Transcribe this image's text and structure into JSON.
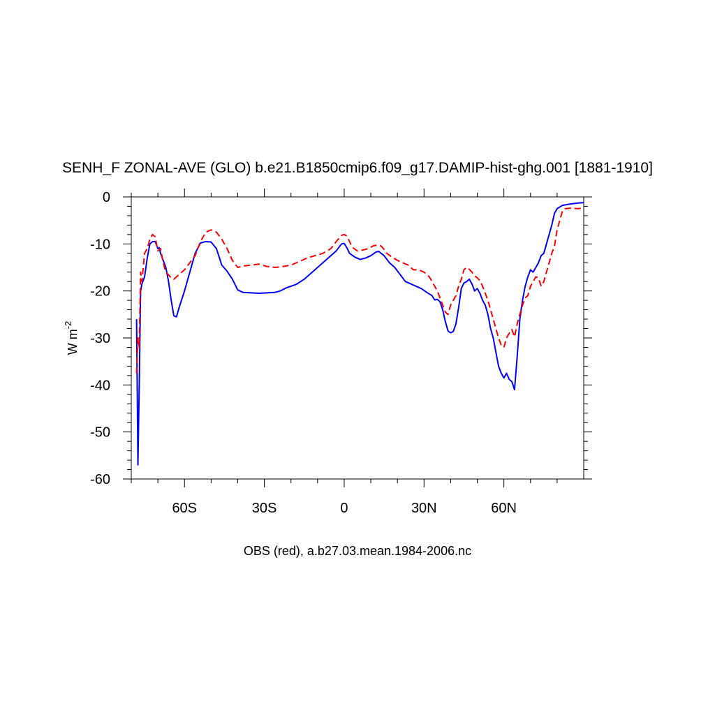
{
  "chart_data": {
    "type": "line",
    "title": "SENH_F ZONAL-AVE (GLO) b.e21.B1850cmip6.f09_g17.DAMIP-hist-ghg.001 [1881-1910]",
    "ylabel_main": "W m",
    "ylabel_sup": "-2",
    "xlabel": "OBS (red), a.b27.03.mean.1984-2006.nc",
    "xlim": [
      -80,
      90
    ],
    "ylim": [
      -60,
      0
    ],
    "x_ticks": [
      {
        "value": -60,
        "label": "60S"
      },
      {
        "value": -30,
        "label": "30S"
      },
      {
        "value": 0,
        "label": "0"
      },
      {
        "value": 30,
        "label": "30N"
      },
      {
        "value": 60,
        "label": "60N"
      }
    ],
    "y_ticks": [
      {
        "value": 0,
        "label": "0"
      },
      {
        "value": -10,
        "label": "-10"
      },
      {
        "value": -20,
        "label": "-20"
      },
      {
        "value": -30,
        "label": "-30"
      },
      {
        "value": -40,
        "label": "-40"
      },
      {
        "value": -50,
        "label": "-50"
      },
      {
        "value": -60,
        "label": "-60"
      }
    ],
    "grid": false,
    "series": [
      {
        "color": "#0000ff",
        "dash": "solid",
        "points": [
          [
            -78,
            -26
          ],
          [
            -77.5,
            -57
          ],
          [
            -77,
            -40
          ],
          [
            -76.5,
            -20
          ],
          [
            -76,
            -18.5
          ],
          [
            -75,
            -17
          ],
          [
            -74,
            -13
          ],
          [
            -73,
            -10
          ],
          [
            -72,
            -9.5
          ],
          [
            -71,
            -9.5
          ],
          [
            -70,
            -11
          ],
          [
            -69.5,
            -10.8
          ],
          [
            -69,
            -12
          ],
          [
            -68,
            -13.5
          ],
          [
            -67,
            -15
          ],
          [
            -66,
            -18
          ],
          [
            -65,
            -22
          ],
          [
            -64,
            -25.3
          ],
          [
            -63,
            -25.5
          ],
          [
            -62,
            -23.5
          ],
          [
            -60,
            -20
          ],
          [
            -58,
            -16
          ],
          [
            -56,
            -12
          ],
          [
            -54,
            -9.8
          ],
          [
            -52,
            -9.5
          ],
          [
            -50,
            -9.6
          ],
          [
            -48,
            -11
          ],
          [
            -46,
            -14.5
          ],
          [
            -44,
            -15.8
          ],
          [
            -42,
            -17.5
          ],
          [
            -40,
            -19.8
          ],
          [
            -38,
            -20.3
          ],
          [
            -35,
            -20.4
          ],
          [
            -32,
            -20.5
          ],
          [
            -29,
            -20.4
          ],
          [
            -26,
            -20.3
          ],
          [
            -24,
            -20
          ],
          [
            -22,
            -19.4
          ],
          [
            -20,
            -19
          ],
          [
            -18,
            -18.6
          ],
          [
            -15,
            -17.5
          ],
          [
            -12,
            -16
          ],
          [
            -9,
            -14.5
          ],
          [
            -6,
            -13
          ],
          [
            -3,
            -11.5
          ],
          [
            -1,
            -10
          ],
          [
            0,
            -9.9
          ],
          [
            1,
            -10.8
          ],
          [
            2,
            -12
          ],
          [
            4,
            -12.8
          ],
          [
            6,
            -13.3
          ],
          [
            8,
            -13
          ],
          [
            10,
            -12.5
          ],
          [
            12,
            -11.7
          ],
          [
            13,
            -11.6
          ],
          [
            15,
            -12.5
          ],
          [
            17,
            -14
          ],
          [
            19,
            -15
          ],
          [
            21,
            -16.5
          ],
          [
            23,
            -18
          ],
          [
            25,
            -18.5
          ],
          [
            27,
            -19
          ],
          [
            29,
            -19.5
          ],
          [
            31,
            -20.3
          ],
          [
            33,
            -21
          ],
          [
            34,
            -21.9
          ],
          [
            35,
            -21.8
          ],
          [
            36,
            -22.3
          ],
          [
            37,
            -24
          ],
          [
            38,
            -26.5
          ],
          [
            39,
            -28.5
          ],
          [
            40,
            -28.9
          ],
          [
            41,
            -28.6
          ],
          [
            42,
            -27
          ],
          [
            43,
            -23.5
          ],
          [
            44,
            -19.5
          ],
          [
            45,
            -18.3
          ],
          [
            46,
            -18
          ],
          [
            47,
            -17.5
          ],
          [
            48,
            -18.5
          ],
          [
            49,
            -20
          ],
          [
            50,
            -19.5
          ],
          [
            51,
            -20.5
          ],
          [
            52,
            -22
          ],
          [
            53,
            -23
          ],
          [
            54,
            -25
          ],
          [
            55,
            -28
          ],
          [
            56,
            -30
          ],
          [
            57,
            -33
          ],
          [
            58,
            -36
          ],
          [
            59,
            -37.5
          ],
          [
            60,
            -38.5
          ],
          [
            61,
            -37.5
          ],
          [
            62,
            -38.8
          ],
          [
            63,
            -39.3
          ],
          [
            64,
            -41
          ],
          [
            65,
            -34
          ],
          [
            66,
            -26
          ],
          [
            67,
            -22
          ],
          [
            68,
            -19
          ],
          [
            69,
            -17
          ],
          [
            70,
            -15.5
          ],
          [
            71,
            -16
          ],
          [
            72,
            -15
          ],
          [
            73,
            -14
          ],
          [
            74,
            -12.5
          ],
          [
            75,
            -12
          ],
          [
            76,
            -10
          ],
          [
            77,
            -8
          ],
          [
            78,
            -6
          ],
          [
            79,
            -3.5
          ],
          [
            80,
            -2.5
          ],
          [
            82,
            -1.8
          ],
          [
            85,
            -1.5
          ],
          [
            88,
            -1.3
          ],
          [
            90,
            -1.2
          ]
        ]
      },
      {
        "color": "#ff0000",
        "dash": "dashed",
        "points": [
          [
            -78,
            -37.5
          ],
          [
            -77.5,
            -30
          ],
          [
            -77,
            -32
          ],
          [
            -76.5,
            -16
          ],
          [
            -76,
            -18
          ],
          [
            -75,
            -12
          ],
          [
            -74,
            -11
          ],
          [
            -73,
            -9
          ],
          [
            -72,
            -8
          ],
          [
            -71,
            -8.5
          ],
          [
            -70,
            -11.5
          ],
          [
            -69,
            -11
          ],
          [
            -68,
            -14
          ],
          [
            -67,
            -16
          ],
          [
            -65,
            -17.2
          ],
          [
            -64,
            -17.5
          ],
          [
            -62,
            -16.5
          ],
          [
            -60,
            -15.5
          ],
          [
            -58,
            -14
          ],
          [
            -56,
            -12.5
          ],
          [
            -54,
            -9.5
          ],
          [
            -52,
            -7.5
          ],
          [
            -50,
            -7
          ],
          [
            -48,
            -7.5
          ],
          [
            -46,
            -9
          ],
          [
            -44,
            -11
          ],
          [
            -42,
            -13.5
          ],
          [
            -40,
            -15
          ],
          [
            -38,
            -14.7
          ],
          [
            -35,
            -14.5
          ],
          [
            -32,
            -14.3
          ],
          [
            -29,
            -14.8
          ],
          [
            -26,
            -15
          ],
          [
            -23,
            -14.8
          ],
          [
            -20,
            -14.5
          ],
          [
            -17,
            -13.8
          ],
          [
            -14,
            -13
          ],
          [
            -11,
            -12.5
          ],
          [
            -8,
            -12
          ],
          [
            -5,
            -11
          ],
          [
            -3,
            -9.5
          ],
          [
            -1,
            -8.2
          ],
          [
            0,
            -8
          ],
          [
            1,
            -8.3
          ],
          [
            2,
            -9.5
          ],
          [
            3,
            -10.7
          ],
          [
            5,
            -11.5
          ],
          [
            7,
            -11.3
          ],
          [
            9,
            -11
          ],
          [
            11,
            -10.4
          ],
          [
            13,
            -10.2
          ],
          [
            14,
            -10.5
          ],
          [
            15,
            -11.2
          ],
          [
            16,
            -12
          ],
          [
            18,
            -12.8
          ],
          [
            20,
            -13.5
          ],
          [
            22,
            -14
          ],
          [
            24,
            -14.5
          ],
          [
            26,
            -15.5
          ],
          [
            28,
            -15.5
          ],
          [
            30,
            -16
          ],
          [
            32,
            -17
          ],
          [
            34,
            -19
          ],
          [
            35,
            -20
          ],
          [
            36,
            -21.5
          ],
          [
            37,
            -23
          ],
          [
            38,
            -24.5
          ],
          [
            39,
            -25
          ],
          [
            40,
            -23
          ],
          [
            41,
            -22
          ],
          [
            42,
            -21
          ],
          [
            43,
            -19
          ],
          [
            44,
            -17.5
          ],
          [
            45,
            -15.5
          ],
          [
            46,
            -15
          ],
          [
            47,
            -15.4
          ],
          [
            48,
            -16
          ],
          [
            49,
            -16.8
          ],
          [
            50,
            -17.2
          ],
          [
            51,
            -17.8
          ],
          [
            52,
            -19
          ],
          [
            53,
            -20.5
          ],
          [
            54,
            -22
          ],
          [
            55,
            -24
          ],
          [
            56,
            -26
          ],
          [
            57,
            -28
          ],
          [
            58,
            -30
          ],
          [
            59,
            -31.5
          ],
          [
            60,
            -32
          ],
          [
            61,
            -30
          ],
          [
            62,
            -29
          ],
          [
            63,
            -28.2
          ],
          [
            64,
            -29.8
          ],
          [
            65,
            -27
          ],
          [
            66,
            -25
          ],
          [
            67,
            -23
          ],
          [
            68,
            -21.5
          ],
          [
            69,
            -21
          ],
          [
            70,
            -19
          ],
          [
            71,
            -18
          ],
          [
            72,
            -17
          ],
          [
            73,
            -17.2
          ],
          [
            74,
            -19
          ],
          [
            75,
            -18
          ],
          [
            76,
            -16
          ],
          [
            77,
            -14
          ],
          [
            78,
            -12
          ],
          [
            79,
            -10.5
          ],
          [
            80,
            -7
          ],
          [
            81,
            -5
          ],
          [
            82,
            -3
          ],
          [
            83,
            -2.5
          ],
          [
            85,
            -2.4
          ],
          [
            88,
            -2.5
          ],
          [
            90,
            -2.3
          ]
        ]
      }
    ]
  }
}
